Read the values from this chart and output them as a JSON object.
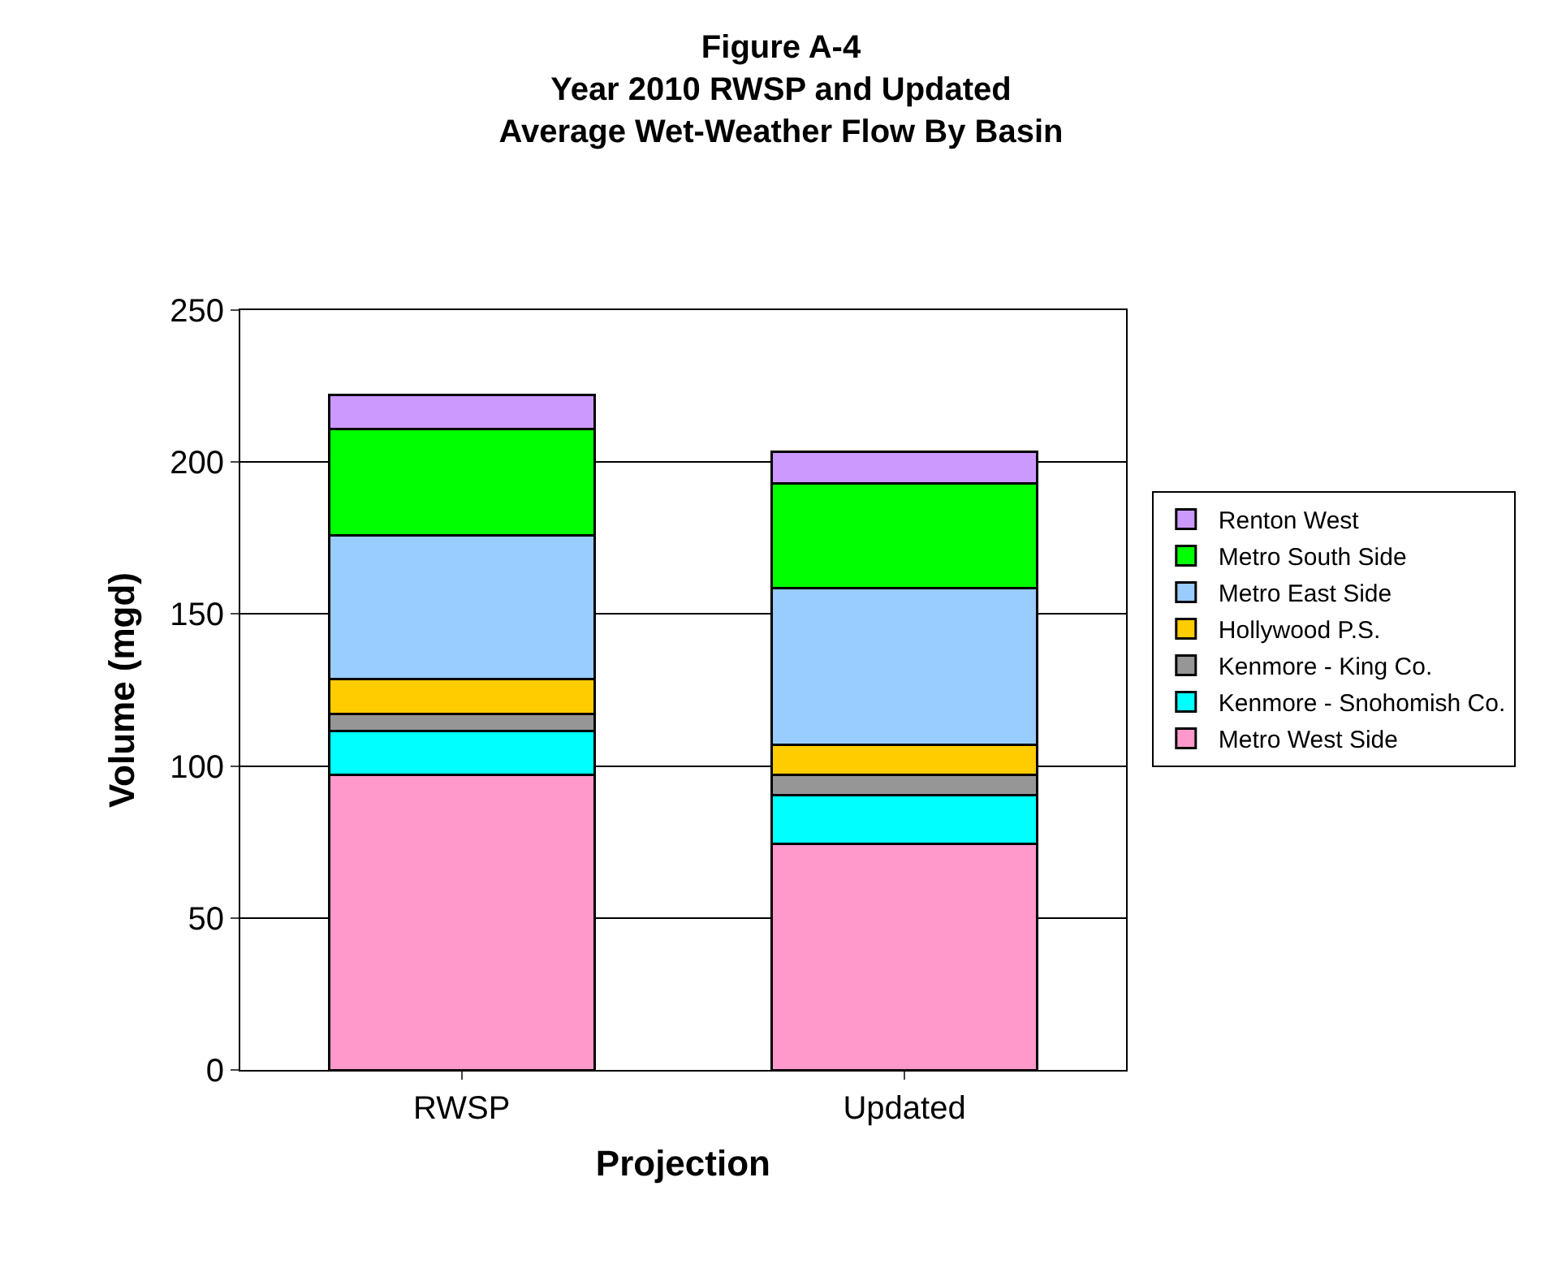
{
  "chart_data": {
    "type": "bar",
    "stacked": true,
    "title": "Figure A-4\nYear 2010 RWSP and Updated\nAverage Wet-Weather Flow By Basin",
    "xlabel": "Projection",
    "ylabel": "Volume (mgd)",
    "categories": [
      "RWSP",
      "Updated"
    ],
    "series": [
      {
        "name": "Metro West Side",
        "color": "#ff99cc",
        "values": [
          97,
          74.5
        ]
      },
      {
        "name": "Kenmore - Snohomish Co.",
        "color": "#00ffff",
        "values": [
          14.5,
          16
        ]
      },
      {
        "name": "Kenmore - King Co.",
        "color": "#969696",
        "values": [
          5.5,
          6.5
        ]
      },
      {
        "name": "Hollywood P.S.",
        "color": "#ffcc00",
        "values": [
          11.5,
          10
        ]
      },
      {
        "name": "Metro East Side",
        "color": "#99ccff",
        "values": [
          47.5,
          51.5
        ]
      },
      {
        "name": "Metro South Side",
        "color": "#00ff00",
        "values": [
          35,
          34.5
        ]
      },
      {
        "name": "Renton West",
        "color": "#cc99ff",
        "values": [
          11,
          10.5
        ]
      }
    ],
    "ylim": [
      0,
      250
    ],
    "yticks": [
      0,
      50,
      100,
      150,
      200,
      250
    ],
    "grid": "y",
    "legend": "right"
  }
}
